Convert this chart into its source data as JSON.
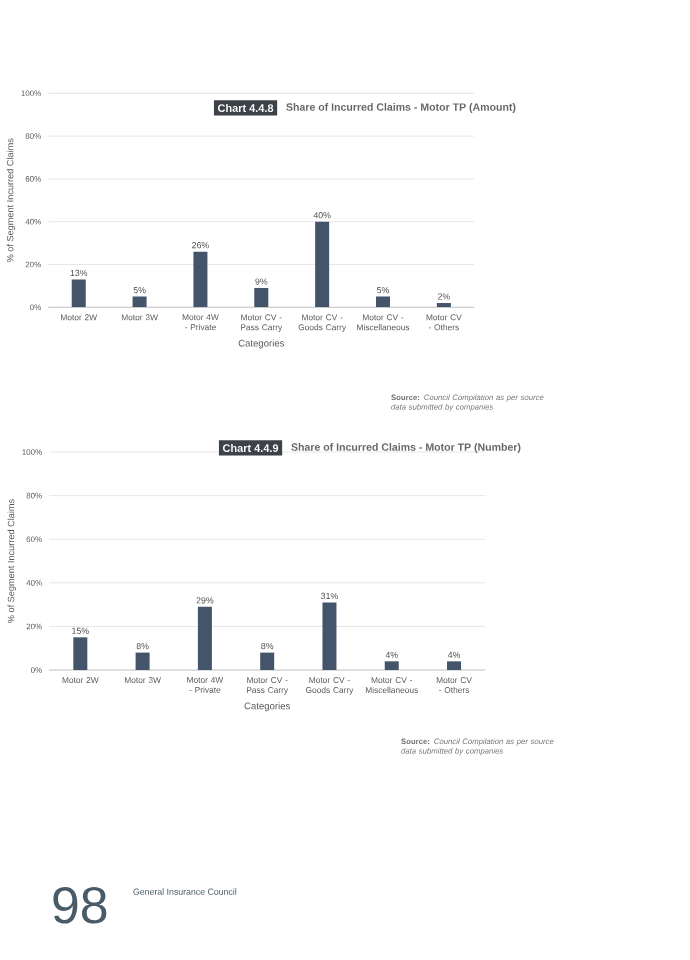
{
  "chart_data": [
    {
      "type": "bar",
      "title": "Chart 4.4.8",
      "subtitle": "Share of Incurred Claims - Motor TP (Amount)",
      "xlabel": "Categories",
      "ylabel": "% of Segment Incurred Claims",
      "categories": [
        "Motor 2W",
        "Motor 3W",
        "Motor 4W - Private",
        "Motor CV - Pass Carry",
        "Motor CV - Goods Carry",
        "Motor CV - Miscellaneous",
        "Motor CV - Others"
      ],
      "values": [
        13,
        5,
        26,
        9,
        40,
        5,
        2
      ],
      "value_labels": [
        "13%",
        "5%",
        "26%",
        "9%",
        "40%",
        "5%",
        "2%"
      ],
      "color": "#44546a",
      "ylim": [
        0,
        100
      ],
      "yticks": [
        {
          "value": 0,
          "label": "0%"
        },
        {
          "value": 20,
          "label": "20%"
        },
        {
          "value": 40,
          "label": "40%"
        },
        {
          "value": 60,
          "label": "60%"
        },
        {
          "value": 80,
          "label": "80%"
        },
        {
          "value": 100,
          "label": "100%"
        }
      ],
      "grid": "y",
      "annotations": [
        "**Source:** *Council Compilation as per source data submitted by companies*"
      ]
    },
    {
      "type": "bar",
      "title": "Chart 4.4.9",
      "subtitle": "Share of Incurred Claims - Motor TP (Number)",
      "xlabel": "Categories",
      "ylabel": "% of Segment Incurred Claims",
      "categories": [
        "Motor 2W",
        "Motor 3W",
        "Motor 4W - Private",
        "Motor CV - Pass Carry",
        "Motor CV - Goods Carry",
        "Motor CV - Miscellaneous",
        "Motor CV - Others"
      ],
      "values": [
        15,
        8,
        29,
        8,
        31,
        4,
        4
      ],
      "value_labels": [
        "15%",
        "8%",
        "29%",
        "8%",
        "31%",
        "4%",
        "4%"
      ],
      "color": "#44546a",
      "ylim": [
        0,
        100
      ],
      "yticks": [
        {
          "value": 0,
          "label": "0%"
        },
        {
          "value": 20,
          "label": "20%"
        },
        {
          "value": 40,
          "label": "40%"
        },
        {
          "value": 60,
          "label": "60%"
        },
        {
          "value": 80,
          "label": "80%"
        },
        {
          "value": 100,
          "label": "100%"
        }
      ],
      "grid": "y",
      "annotations": [
        "**Source:** *Council Compilation as per source data submitted by companies*",
        "98",
        "General Insurance Council"
      ]
    }
  ]
}
